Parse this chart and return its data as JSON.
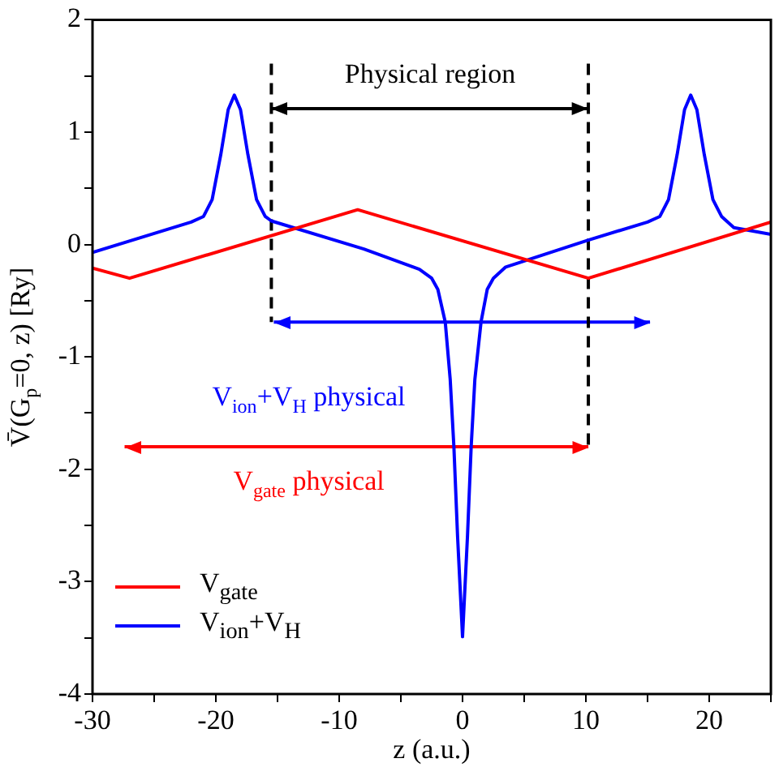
{
  "chart_data": {
    "type": "line",
    "xlabel": "z (a.u.)",
    "ylabel": "V̄(G$_{p}$=0, z) [Ry]",
    "xlim": [
      -30,
      25
    ],
    "ylim": [
      -4,
      2
    ],
    "xticks": [
      -30,
      {
        "value": -25,
        "label": null
      },
      -20,
      {
        "value": -15,
        "label": null
      },
      -10,
      {
        "value": -5,
        "label": null
      },
      0,
      {
        "value": 5,
        "label": null
      },
      10,
      {
        "value": 15,
        "label": null
      },
      20,
      {
        "value": 25,
        "label": null
      }
    ],
    "yticks": [
      -4,
      {
        "value": -3.5,
        "label": null
      },
      -3,
      {
        "value": -2.5,
        "label": null
      },
      -2,
      {
        "value": -1.5,
        "label": null
      },
      -1,
      {
        "value": -0.5,
        "label": null
      },
      0,
      {
        "value": 0.5,
        "label": null
      },
      1,
      {
        "value": 1.5,
        "label": null
      },
      2
    ],
    "grid": false,
    "legend": "bottom left",
    "series": [
      {
        "name": "V$_{gate}$",
        "color": "#ff0000",
        "x": [
          -30,
          -27,
          -8.5,
          10.2,
          25
        ],
        "values": [
          -0.21,
          -0.3,
          0.31,
          -0.3,
          0.2
        ]
      },
      {
        "name": "V$_{ion}$+V$_{H}$",
        "color": "#0000ff",
        "x": [
          -30,
          -22,
          -21,
          -20.3,
          -19.6,
          -19,
          -18.5,
          -18,
          -17.4,
          -16.7,
          -16,
          -15.5,
          -8,
          -3.5,
          -2.5,
          -2,
          -1.4,
          -1,
          -0.7,
          -0.4,
          0,
          0.4,
          0.7,
          1,
          1.5,
          2,
          2.5,
          3.5,
          10.2,
          15,
          16,
          16.7,
          17.4,
          18,
          18.5,
          19,
          19.6,
          20.3,
          21,
          22,
          25
        ],
        "values": [
          -0.07,
          0.2,
          0.25,
          0.4,
          0.8,
          1.2,
          1.33,
          1.2,
          0.8,
          0.4,
          0.25,
          0.21,
          -0.04,
          -0.22,
          -0.3,
          -0.4,
          -0.69,
          -1.2,
          -1.8,
          -2.6,
          -3.49,
          -2.6,
          -1.8,
          -1.2,
          -0.69,
          -0.4,
          -0.3,
          -0.2,
          0.04,
          0.2,
          0.25,
          0.4,
          0.8,
          1.2,
          1.33,
          1.2,
          0.8,
          0.4,
          0.25,
          0.15,
          0.09
        ]
      },
      {
        "type": "line",
        "color": "#000000",
        "line_style": "dashed",
        "x": [
          -15.5,
          -15.5
        ],
        "values": [
          1.61,
          -0.69
        ]
      },
      {
        "type": "line",
        "color": "#000000",
        "line_style": "dashed",
        "x": [
          10.2,
          10.2
        ],
        "values": [
          1.61,
          -1.8
        ]
      },
      {
        "type": "line",
        "color": "#000000",
        "x": [
          -15.5,
          10.2
        ],
        "values": [
          1.21,
          1.21
        ]
      },
      {
        "type": "line",
        "color": "#0000ff",
        "x": [
          -15.3,
          15.2
        ],
        "values": [
          -0.69,
          -0.69
        ]
      },
      {
        "type": "line",
        "color": "#ff0000",
        "x": [
          -27.4,
          10.2
        ],
        "values": [
          -1.8,
          -1.8
        ]
      }
    ],
    "annotations": [
      "Physical region",
      "V$_{ion}$+V$_{H}$ physical",
      "V$_{gate}$ physical"
    ]
  }
}
